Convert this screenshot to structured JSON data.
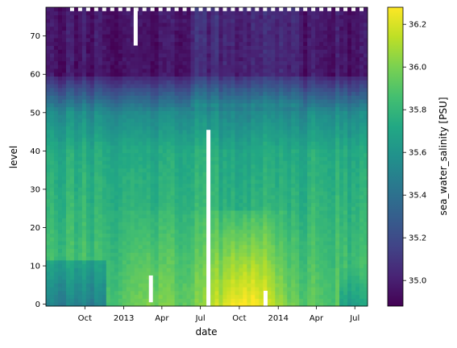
{
  "chart_data": {
    "type": "heatmap",
    "title": "",
    "xlabel": "date",
    "ylabel": "level",
    "x_range": [
      "2012-07-01",
      "2014-07-31"
    ],
    "x_ticks": [
      {
        "date": "2012-10-01",
        "label": "Oct"
      },
      {
        "date": "2013-01-01",
        "label": "2013"
      },
      {
        "date": "2013-04-01",
        "label": "Apr"
      },
      {
        "date": "2013-07-01",
        "label": "Jul"
      },
      {
        "date": "2013-10-01",
        "label": "Oct"
      },
      {
        "date": "2014-01-01",
        "label": "2014"
      },
      {
        "date": "2014-04-01",
        "label": "Apr"
      },
      {
        "date": "2014-07-01",
        "label": "Jul"
      }
    ],
    "y_range": [
      -0.5,
      77.5
    ],
    "y_ticks": [
      0,
      10,
      20,
      30,
      40,
      50,
      60,
      70
    ],
    "colorbar": {
      "label": "sea_water_salinity [PSU]",
      "range": [
        34.88,
        36.28
      ],
      "ticks": [
        35.0,
        35.2,
        35.4,
        35.6,
        35.8,
        36.0,
        36.2
      ],
      "tick_labels": [
        "35.0",
        "35.2",
        "35.4",
        "35.6",
        "35.8",
        "36.0",
        "36.2"
      ],
      "colormap": "viridis"
    },
    "grid": false,
    "columns": 80,
    "levels": 78,
    "missing_segments": [
      {
        "date": "2013-01-29",
        "from_level": 68,
        "to_level": 77
      },
      {
        "date": "2013-03-06",
        "from_level": 1,
        "to_level": 7
      },
      {
        "date": "2013-07-20",
        "from_level": 0,
        "to_level": 45
      },
      {
        "date": "2013-12-02",
        "from_level": 0,
        "to_level": 3
      }
    ]
  }
}
